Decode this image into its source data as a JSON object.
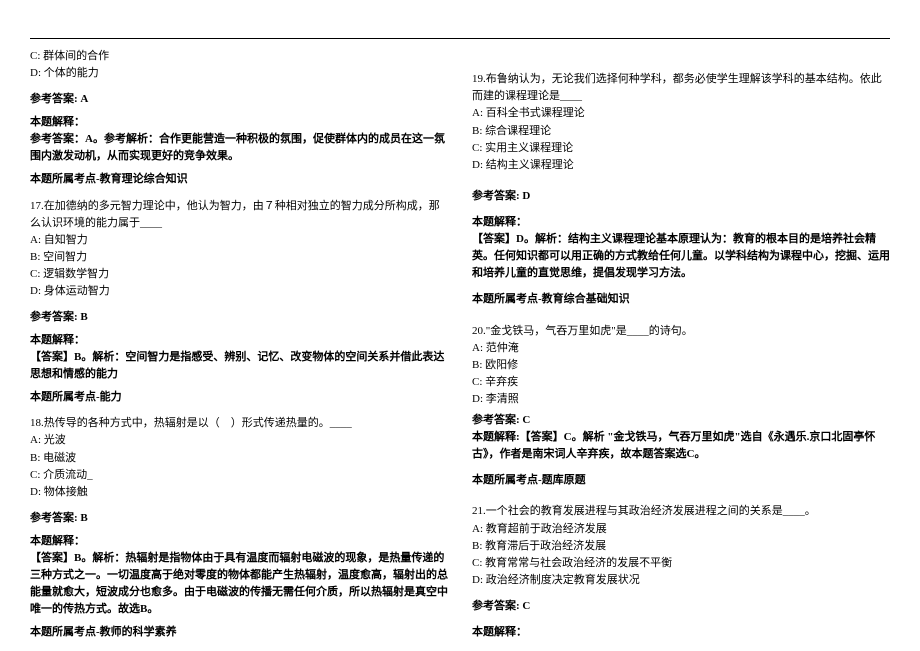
{
  "colors": {
    "text": "#000000",
    "background": "#ffffff",
    "rule": "#000000"
  },
  "typography": {
    "font_family": "SimSun",
    "font_size_pt": 8,
    "line_height": 1.55
  },
  "left_column": {
    "q16_tail": {
      "opt_c": "C: 群体间的合作",
      "opt_d": "D: 个体的能力",
      "answer_label": "参考答案: A",
      "explain_heading": "本题解释：",
      "explain_body": "参考答案：A。参考解析：合作更能营造一种积极的氛围，促使群体内的成员在这一氛围内激发动机，从而实现更好的竞争效果。",
      "topic": "本题所属考点-教育理论综合知识"
    },
    "q17": {
      "stem": "17.在加德纳的多元智力理论中，他认为智力，由７种相对独立的智力成分所构成，那么认识环境的能力属于____",
      "opt_a": "A: 自知智力",
      "opt_b": "B: 空间智力",
      "opt_c": "C: 逻辑数学智力",
      "opt_d": "D: 身体运动智力",
      "answer_label": "参考答案: B",
      "explain_heading": "本题解释：",
      "explain_body": "【答案】B。解析：空间智力是指感受、辨别、记忆、改变物体的空间关系并借此表达思想和情感的能力",
      "topic": "本题所属考点-能力"
    },
    "q18": {
      "stem": "18.热传导的各种方式中，热辐射是以（　）形式传递热量的。____",
      "opt_a": "A: 光波",
      "opt_b": "B: 电磁波",
      "opt_c": "C: 介质流动_",
      "opt_d": "D: 物体接触",
      "answer_label": "参考答案: B",
      "explain_heading": "本题解释：",
      "explain_body": "【答案】B。解析：热辐射是指物体由于具有温度而辐射电磁波的现象，是热量传递的三种方式之一。一切温度高于绝对零度的物体都能产生热辐射，温度愈高，辐射出的总能量就愈大，短波成分也愈多。由于电磁波的传播无需任何介质，所以热辐射是真空中唯一的传热方式。故选B。",
      "topic": "本题所属考点-教师的科学素养"
    }
  },
  "right_column": {
    "q19": {
      "stem": "19.布鲁纳认为，无论我们选择何种学科，都务必使学生理解该学科的基本结构。依此而建的课程理论是____",
      "opt_a": "A: 百科全书式课程理论",
      "opt_b": "B: 综合课程理论",
      "opt_c": "C: 实用主义课程理论",
      "opt_d": "D: 结构主义课程理论",
      "answer_label": "参考答案: D",
      "explain_heading": "本题解释：",
      "explain_body": "【答案】D。解析：结构主义课程理论基本原理认为：教育的根本目的是培养社会精英。任何知识都可以用正确的方式教给任何儿童。以学科结构为课程中心，挖掘、运用和培养儿童的直觉思维，提倡发现学习方法。",
      "topic": "本题所属考点-教育综合基础知识"
    },
    "q20": {
      "stem": "20.\"金戈铁马，气吞万里如虎\"是____的诗句。",
      "opt_a": "A: 范仲淹",
      "opt_b": "B: 欧阳修",
      "opt_c": "C: 辛弃疾",
      "opt_d": "D: 李清照",
      "answer_label": "参考答案: C",
      "explain_body": "本题解释:【答案】C。解析 \"金戈铁马，气吞万里如虎\"选自《永遇乐.京口北固亭怀古》，作者是南宋词人辛弃疾，故本题答案选C。",
      "topic": "本题所属考点-题库原题"
    },
    "q21": {
      "stem": "21.一个社会的教育发展进程与其政治经济发展进程之间的关系是____。",
      "opt_a": "A: 教育超前于政治经济发展",
      "opt_b": "B: 教育滞后于政治经济发展",
      "opt_c": "C: 教育常常与社会政治经济的发展不平衡",
      "opt_d": "D: 政治经济制度决定教育发展状况",
      "answer_label": "参考答案: C",
      "explain_heading": "本题解释："
    }
  }
}
